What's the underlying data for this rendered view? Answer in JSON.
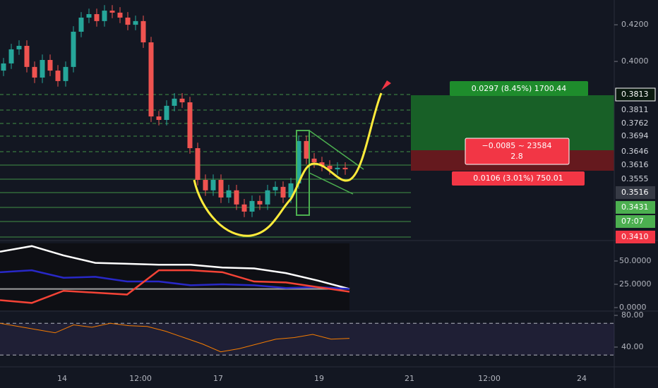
{
  "chart_data": {
    "type": "candlestick",
    "ylim": [
      0.3027,
      0.4335
    ],
    "yticks": [
      {
        "value": 0.42,
        "label": "0.4200"
      },
      {
        "value": 0.4,
        "label": "0.4000"
      }
    ],
    "open": [
      0.395,
      0.3989,
      0.4066,
      0.4085,
      0.397,
      0.3912,
      0.4008,
      0.395,
      0.3893,
      0.397,
      0.4162,
      0.4239,
      0.4258,
      0.422,
      0.4277,
      0.4266,
      0.4239,
      0.42,
      0.422,
      0.4104,
      0.37,
      0.3681,
      0.3758,
      0.3797,
      0.3777,
      0.3527,
      0.3354,
      0.3297,
      0.3354,
      0.3258,
      0.3297,
      0.322,
      0.3181,
      0.3239,
      0.322,
      0.3297,
      0.3316,
      0.3258,
      0.3335,
      0.3566,
      0.347,
      0.345,
      0.3431,
      0.3412,
      0.342
    ],
    "high": [
      0.4019,
      0.4096,
      0.4115,
      0.4115,
      0.4,
      0.4038,
      0.4038,
      0.398,
      0.4,
      0.4192,
      0.4269,
      0.4288,
      0.4288,
      0.4307,
      0.4307,
      0.4296,
      0.4269,
      0.425,
      0.425,
      0.4134,
      0.373,
      0.3788,
      0.3827,
      0.3827,
      0.3807,
      0.3557,
      0.3384,
      0.3384,
      0.3384,
      0.3327,
      0.3327,
      0.325,
      0.3269,
      0.3269,
      0.3327,
      0.3346,
      0.3346,
      0.3365,
      0.3596,
      0.3596,
      0.35,
      0.348,
      0.3461,
      0.345,
      0.345
    ],
    "low": [
      0.392,
      0.3959,
      0.4036,
      0.394,
      0.3882,
      0.3882,
      0.392,
      0.3863,
      0.3863,
      0.394,
      0.4132,
      0.4209,
      0.419,
      0.419,
      0.4236,
      0.4209,
      0.417,
      0.417,
      0.4074,
      0.367,
      0.3651,
      0.3651,
      0.3728,
      0.3747,
      0.3497,
      0.3324,
      0.3267,
      0.3267,
      0.3228,
      0.3228,
      0.319,
      0.3151,
      0.3151,
      0.319,
      0.319,
      0.3267,
      0.3228,
      0.3228,
      0.3305,
      0.344,
      0.342,
      0.3401,
      0.3382,
      0.3382,
      0.3382
    ],
    "close": [
      0.3989,
      0.4066,
      0.4085,
      0.397,
      0.3912,
      0.4008,
      0.395,
      0.3893,
      0.397,
      0.4162,
      0.4239,
      0.4258,
      0.422,
      0.4277,
      0.4266,
      0.4239,
      0.42,
      0.422,
      0.4104,
      0.37,
      0.3681,
      0.3758,
      0.3797,
      0.3777,
      0.3527,
      0.3354,
      0.3297,
      0.3354,
      0.3258,
      0.3297,
      0.322,
      0.3181,
      0.3239,
      0.322,
      0.3297,
      0.3316,
      0.3258,
      0.3335,
      0.3566,
      0.347,
      0.345,
      0.3431,
      0.3412,
      0.342,
      0.3412
    ],
    "up_color": "#26a69a",
    "down_color": "#ef5350",
    "price_tags": [
      {
        "label": "0.3813",
        "bg": "#0b1a10",
        "fg": "#ffffff"
      },
      {
        "label": "0.3811",
        "bg": null,
        "fg": "#d1d4dc"
      },
      {
        "label": "0.3762",
        "bg": null,
        "fg": "#d1d4dc"
      },
      {
        "label": "0.3694",
        "bg": null,
        "fg": "#d1d4dc"
      },
      {
        "label": "0.3646",
        "bg": null,
        "fg": "#d1d4dc"
      },
      {
        "label": "0.3616",
        "bg": null,
        "fg": "#d1d4dc"
      },
      {
        "label": "0.3555",
        "bg": null,
        "fg": "#d1d4dc"
      },
      {
        "label": "0.3516",
        "bg": "#363a45",
        "fg": "#ffffff"
      },
      {
        "label": "0.3431",
        "bg": "#4caf50",
        "fg": "#ffffff"
      },
      {
        "label": "07:07",
        "bg": "#4caf50",
        "fg": "#ffffff"
      },
      {
        "label": "0.3410",
        "bg": "#f23645",
        "fg": "#ffffff"
      }
    ],
    "position": {
      "profit": "0.0297 (8.45%) 1700.44",
      "center": "−0.0085 ~ 23584",
      "ratio": "2.8",
      "loss": "0.0106 (3.01%) 750.01"
    },
    "x_labels": [
      "14",
      "12:00",
      "17",
      "19",
      "21",
      "12:00",
      "24"
    ],
    "dmi": {
      "ylim": [
        -3,
        68.9
      ],
      "yticks": [
        {
          "value": 50,
          "label": "50.0000"
        },
        {
          "value": 25,
          "label": "25.0000"
        },
        {
          "value": 0,
          "label": "0.0000"
        }
      ],
      "level": 20,
      "series": [
        {
          "color": "#ffffff",
          "values": [
            60,
            66,
            56,
            48,
            47,
            46,
            46,
            43,
            42,
            37,
            29,
            20
          ]
        },
        {
          "color": "#2828c8",
          "values": [
            38,
            40,
            32,
            33,
            28,
            28,
            24,
            25,
            24,
            21,
            22,
            20
          ]
        },
        {
          "color": "#f44336",
          "values": [
            8,
            5,
            18,
            16,
            14,
            40,
            40,
            38,
            28,
            27,
            22,
            17
          ]
        }
      ]
    },
    "rsi": {
      "ylim": [
        15.1,
        83.6
      ],
      "yticks": [
        {
          "value": 80,
          "label": "80.00"
        },
        {
          "value": 40,
          "label": "40.00"
        }
      ],
      "band": [
        30,
        70
      ],
      "color": "#f57c00",
      "values": [
        70,
        66,
        62,
        58,
        68,
        65,
        70,
        67,
        66,
        60,
        52,
        44,
        34,
        38,
        44,
        50,
        52,
        56,
        50,
        51
      ]
    }
  }
}
